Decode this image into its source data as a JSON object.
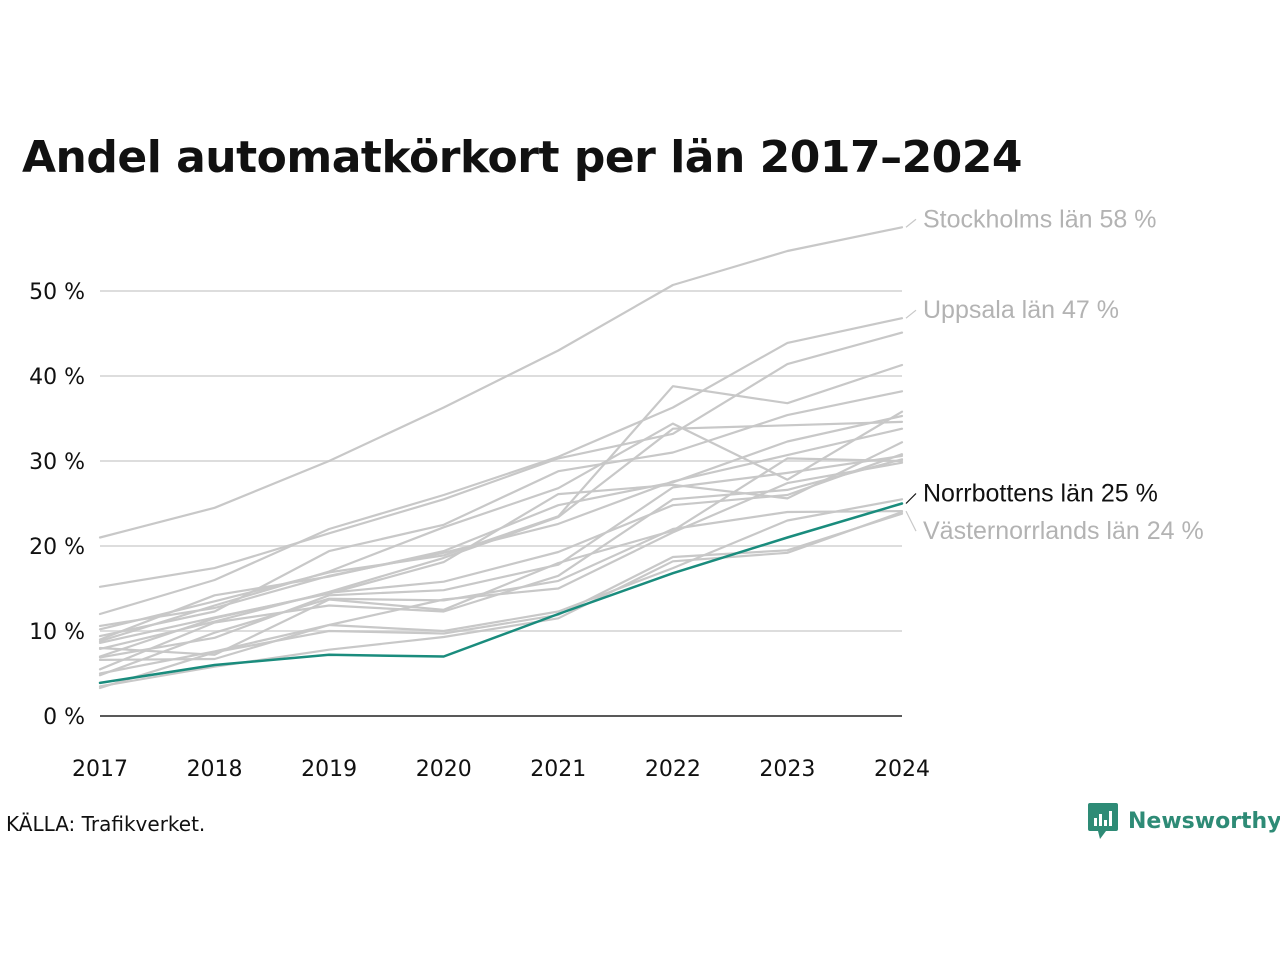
{
  "title": "Andel automatkörkort per län 2017–2024",
  "source": "KÄLLA: Trafikverket.",
  "brand": {
    "name": "Newsworthy",
    "color": "#2e8b76",
    "icon": "newsworthy-logo-icon"
  },
  "colors": {
    "background_lines": "#c8c8c8",
    "highlight": "#1a8c7d",
    "grid": "#dddddd",
    "axis": "#222222"
  },
  "chart_data": {
    "type": "line",
    "title": "Andel automatkörkort per län 2017–2024",
    "xlabel": "",
    "ylabel": "",
    "x": [
      2017,
      2018,
      2019,
      2020,
      2021,
      2022,
      2023,
      2024
    ],
    "x_tick_labels": [
      "2017",
      "2018",
      "2019",
      "2020",
      "2021",
      "2022",
      "2023",
      "2024"
    ],
    "ylim": [
      0,
      58
    ],
    "y_ticks": [
      0,
      10,
      20,
      30,
      40,
      50
    ],
    "y_tick_labels": [
      "0 %",
      "10 %",
      "20 %",
      "30 %",
      "40 %",
      "50 %"
    ],
    "grid": true,
    "highlight_series": "Norrbottens län",
    "series": [
      {
        "name": "Stockholms län",
        "label": "Stockholms län 58 %",
        "values": [
          21,
          24.5,
          30,
          36.3,
          43,
          50.7,
          54.7,
          57.5
        ],
        "highlight": false
      },
      {
        "name": "Uppsala län",
        "label": "Uppsala län 47 %",
        "values": [
          12,
          16,
          22,
          26,
          30.5,
          36.3,
          43.9,
          46.8
        ],
        "highlight": false
      },
      {
        "values": [
          15.2,
          17.4,
          21.5,
          25.5,
          30.3,
          33.2,
          41.4,
          45.1
        ],
        "highlight": false
      },
      {
        "values": [
          10.2,
          13.5,
          16.9,
          18.9,
          23.5,
          38.8,
          36.8,
          41.3
        ],
        "highlight": false
      },
      {
        "values": [
          9.4,
          12.3,
          19.4,
          22.5,
          28.8,
          31.0,
          35.4,
          38.2
        ],
        "highlight": false
      },
      {
        "values": [
          8.8,
          13.0,
          17.0,
          22.2,
          26.8,
          34.4,
          27.8,
          35.8
        ],
        "highlight": false
      },
      {
        "values": [
          9.0,
          14.2,
          16.4,
          19.4,
          24.8,
          27.5,
          32.3,
          35.3
        ],
        "highlight": false
      },
      {
        "values": [
          7.9,
          11.1,
          14.6,
          18.6,
          23.4,
          33.8,
          34.2,
          34.6
        ],
        "highlight": false
      },
      {
        "values": [
          10.6,
          12.7,
          16.5,
          19.2,
          22.6,
          27.6,
          30.7,
          33.8
        ],
        "highlight": false
      },
      {
        "values": [
          8.6,
          11.6,
          14.4,
          18.1,
          26.1,
          27.2,
          25.6,
          32.2
        ],
        "highlight": false
      },
      {
        "values": [
          7.0,
          11.5,
          14.5,
          15.8,
          19.3,
          24.8,
          26.0,
          30.8
        ],
        "highlight": false
      },
      {
        "values": [
          6.9,
          9.2,
          14.2,
          14.8,
          17.8,
          26.9,
          28.6,
          30.6
        ],
        "highlight": false
      },
      {
        "values": [
          5.5,
          11.0,
          13.0,
          12.3,
          16.5,
          25.5,
          26.6,
          30.2
        ],
        "highlight": false
      },
      {
        "values": [
          8.0,
          7.2,
          13.7,
          12.5,
          18.0,
          21.8,
          30.3,
          30.0
        ],
        "highlight": false
      },
      {
        "values": [
          5.0,
          7.6,
          10.7,
          13.7,
          15.0,
          21.6,
          27.4,
          29.8
        ],
        "highlight": false
      },
      {
        "values": [
          6.6,
          6.7,
          10.7,
          10.0,
          12.3,
          17.4,
          23.0,
          25.5
        ],
        "highlight": false
      },
      {
        "values": [
          3.5,
          5.8,
          7.8,
          9.3,
          11.5,
          18.2,
          19.2,
          24.0
        ],
        "highlight": false
      },
      {
        "values": [
          3.3,
          7.5,
          10.0,
          9.7,
          11.9,
          18.7,
          19.5,
          23.8
        ],
        "highlight": false
      },
      {
        "name": "Västernorrlands län",
        "label": "Västernorrlands län 24 %",
        "values": [
          4.8,
          9.8,
          13.8,
          13.6,
          15.9,
          22.0,
          24.0,
          24.1
        ],
        "highlight": false
      },
      {
        "name": "Norrbottens län",
        "label": "Norrbottens län 25 %",
        "values": [
          3.9,
          6.0,
          7.2,
          7.0,
          12.0,
          16.8,
          21.0,
          25.0
        ],
        "highlight": true
      }
    ]
  }
}
